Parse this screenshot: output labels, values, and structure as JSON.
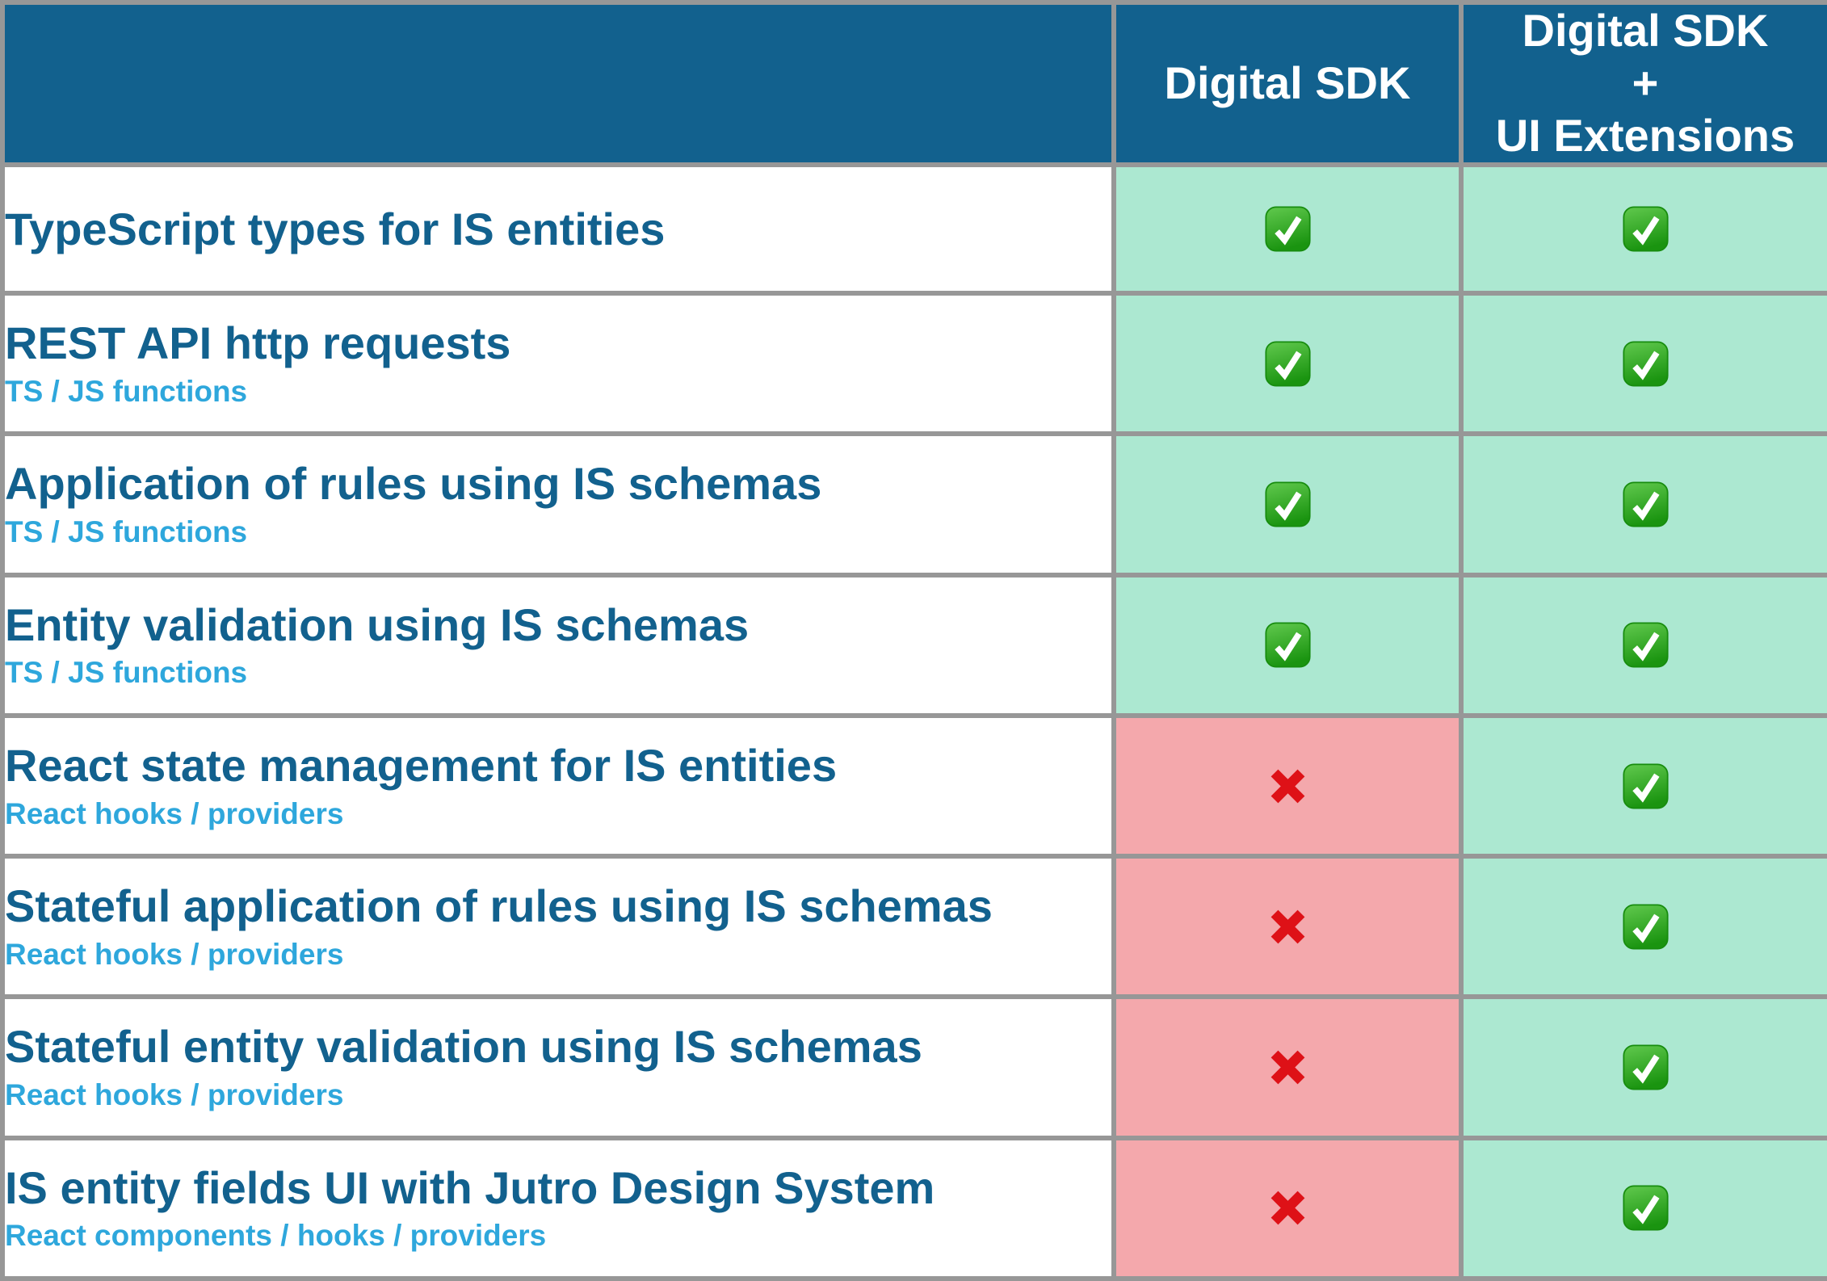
{
  "colors": {
    "header_bg": "#12618E",
    "header_text": "#FFFFFF",
    "title_text": "#12618E",
    "subtitle_text": "#2EA7DC",
    "check_bg": "#ACE8D1",
    "cross_bg": "#F4A8AC",
    "feature_bg": "#FFFFFF",
    "border": "#979797",
    "cross_red": "#DE1117",
    "check_green": "#2AA11C"
  },
  "table": {
    "columns": [
      {
        "label": ""
      },
      {
        "label": "Digital SDK"
      },
      {
        "label": "Digital SDK\n+\nUI Extensions"
      }
    ],
    "rows": [
      {
        "feature": "TypeScript types for IS entities",
        "subtitle": "",
        "digital_sdk": "check",
        "digital_sdk_ui_extensions": "check"
      },
      {
        "feature": "REST API http requests",
        "subtitle": "TS / JS functions",
        "digital_sdk": "check",
        "digital_sdk_ui_extensions": "check"
      },
      {
        "feature": "Application of rules using IS schemas",
        "subtitle": "TS / JS functions",
        "digital_sdk": "check",
        "digital_sdk_ui_extensions": "check"
      },
      {
        "feature": "Entity validation using IS schemas",
        "subtitle": "TS / JS functions",
        "digital_sdk": "check",
        "digital_sdk_ui_extensions": "check"
      },
      {
        "feature": "React state management for IS entities",
        "subtitle": "React hooks / providers",
        "digital_sdk": "cross",
        "digital_sdk_ui_extensions": "check"
      },
      {
        "feature": "Stateful application of rules using IS schemas",
        "subtitle": "React hooks / providers",
        "digital_sdk": "cross",
        "digital_sdk_ui_extensions": "check"
      },
      {
        "feature": "Stateful entity validation using IS schemas",
        "subtitle": "React hooks / providers",
        "digital_sdk": "cross",
        "digital_sdk_ui_extensions": "check"
      },
      {
        "feature": "IS entity fields UI with Jutro Design System",
        "subtitle": "React components / hooks / providers",
        "digital_sdk": "cross",
        "digital_sdk_ui_extensions": "check"
      }
    ]
  },
  "icons": {
    "check": "white checkmark in green rounded square",
    "cross": "red cross mark"
  }
}
